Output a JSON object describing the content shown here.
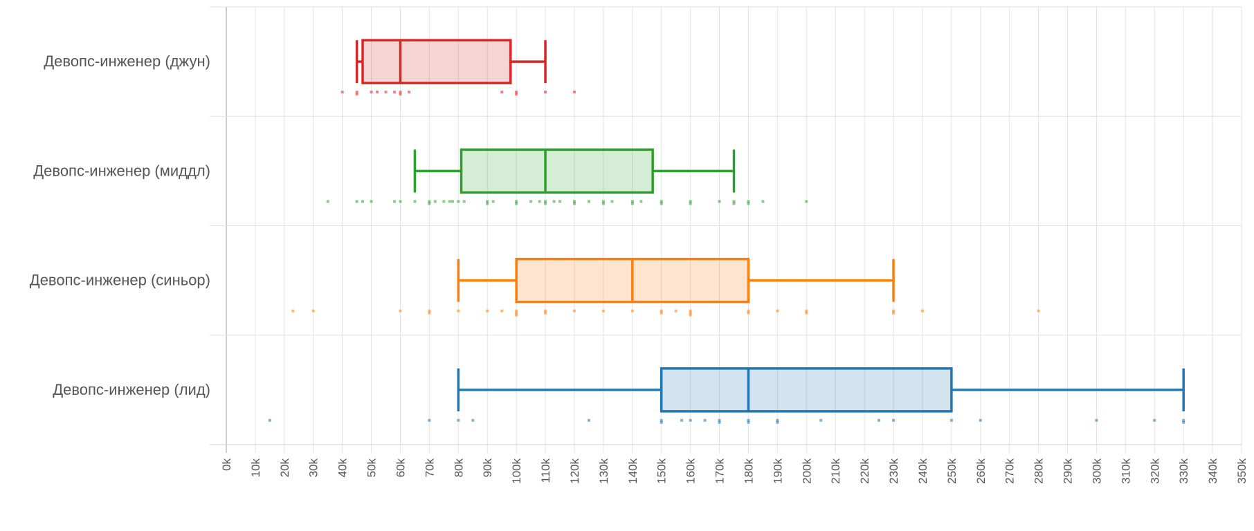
{
  "chart_data": {
    "type": "boxplot",
    "orientation": "horizontal",
    "title": "",
    "xlabel": "",
    "ylabel": "",
    "xlim": [
      0,
      350
    ],
    "x_tick_step": 10,
    "x_tick_suffix": "k",
    "grid": true,
    "legend": "none",
    "categories": [
      {
        "name": "Девопс-инженер (джун)",
        "color": "#d62728",
        "whisker_low": 45,
        "q1": 47,
        "median": 60,
        "q3": 98,
        "whisker_high": 110,
        "points": [
          40,
          45,
          45,
          50,
          52,
          55,
          58,
          60,
          60,
          63,
          95,
          100,
          100,
          110,
          120
        ]
      },
      {
        "name": "Девопс-инженер (миддл)",
        "color": "#2ca02c",
        "whisker_low": 65,
        "q1": 81,
        "median": 110,
        "q3": 147,
        "whisker_high": 175,
        "points": [
          35,
          45,
          47,
          50,
          58,
          60,
          65,
          70,
          70,
          72,
          75,
          77,
          78,
          80,
          82,
          90,
          90,
          92,
          100,
          100,
          105,
          108,
          110,
          110,
          113,
          115,
          120,
          120,
          125,
          130,
          130,
          133,
          140,
          140,
          143,
          150,
          150,
          160,
          160,
          170,
          175,
          175,
          180,
          180,
          185,
          200
        ]
      },
      {
        "name": "Девопс-инженер (синьор)",
        "color": "#ff7f0e",
        "whisker_low": 80,
        "q1": 100,
        "median": 140,
        "q3": 180,
        "whisker_high": 230,
        "points": [
          23,
          30,
          60,
          70,
          70,
          80,
          90,
          95,
          100,
          100,
          100,
          110,
          110,
          120,
          130,
          140,
          150,
          150,
          155,
          160,
          160,
          160,
          180,
          180,
          190,
          200,
          200,
          230,
          230,
          240,
          280
        ]
      },
      {
        "name": "Девопс-инженер (лид)",
        "color": "#1f77b4",
        "whisker_low": 80,
        "q1": 150,
        "median": 180,
        "q3": 250,
        "whisker_high": 330,
        "points": [
          15,
          70,
          80,
          85,
          125,
          150,
          150,
          157,
          160,
          165,
          170,
          170,
          180,
          180,
          190,
          190,
          205,
          225,
          230,
          250,
          260,
          300,
          320,
          330,
          330
        ]
      }
    ]
  }
}
